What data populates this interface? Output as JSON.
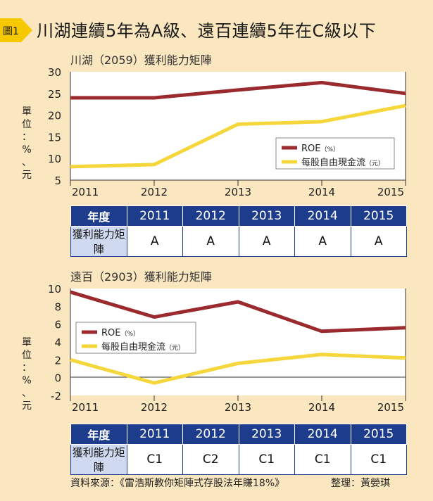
{
  "title": "川湖連續5年為A級、遠百連續5年在C級以下",
  "figure_tag": "圖1",
  "colors": {
    "roe": "#9b2a2e",
    "fcf": "#f5d73c",
    "header_bg": "#1d3d8c",
    "panel_bg": "#fbe7bf"
  },
  "chart_data": [
    {
      "type": "line",
      "title": "川湖（2059）獲利能力矩陣",
      "ylabel": "單位：%、元",
      "categories": [
        "2011",
        "2012",
        "2013",
        "2014",
        "2015"
      ],
      "ylim": [
        5,
        30
      ],
      "yticks": [
        30,
        25,
        20,
        15,
        10,
        5
      ],
      "series": [
        {
          "name": "ROE",
          "unit": "（%）",
          "values": [
            24,
            24,
            25.8,
            27.5,
            25
          ]
        },
        {
          "name": "每股自由現金流",
          "unit": "（元）",
          "values": [
            8.1,
            8.6,
            17.9,
            18.5,
            22.2
          ]
        }
      ],
      "legend": "bottom-right",
      "matrix": {
        "header": "年度",
        "row_label": "獲利能力矩陣",
        "years": [
          "2011",
          "2012",
          "2013",
          "2014",
          "2015"
        ],
        "grades": [
          "A",
          "A",
          "A",
          "A",
          "A"
        ]
      }
    },
    {
      "type": "line",
      "title": "遠百（2903）獲利能力矩陣",
      "ylabel": "單位：%、元",
      "categories": [
        "2011",
        "2012",
        "2013",
        "2014",
        "2015"
      ],
      "ylim": [
        -2,
        10
      ],
      "yticks": [
        10,
        8,
        6,
        4,
        2,
        0,
        -2
      ],
      "series": [
        {
          "name": "ROE",
          "unit": "（%）",
          "values": [
            9.6,
            6.8,
            8.5,
            5.2,
            5.6
          ]
        },
        {
          "name": "每股自由現金流",
          "unit": "（元）",
          "values": [
            2.0,
            -0.6,
            1.6,
            2.6,
            2.2
          ]
        }
      ],
      "legend": "middle-left",
      "matrix": {
        "header": "年度",
        "row_label": "獲利能力矩陣",
        "years": [
          "2011",
          "2012",
          "2013",
          "2014",
          "2015"
        ],
        "grades": [
          "C1",
          "C2",
          "C1",
          "C1",
          "C1"
        ]
      }
    }
  ],
  "footer": {
    "source": "資料來源：《雷浩斯教你矩陣式存股法年賺18%》",
    "editor": "整理：黃嫈琪"
  }
}
